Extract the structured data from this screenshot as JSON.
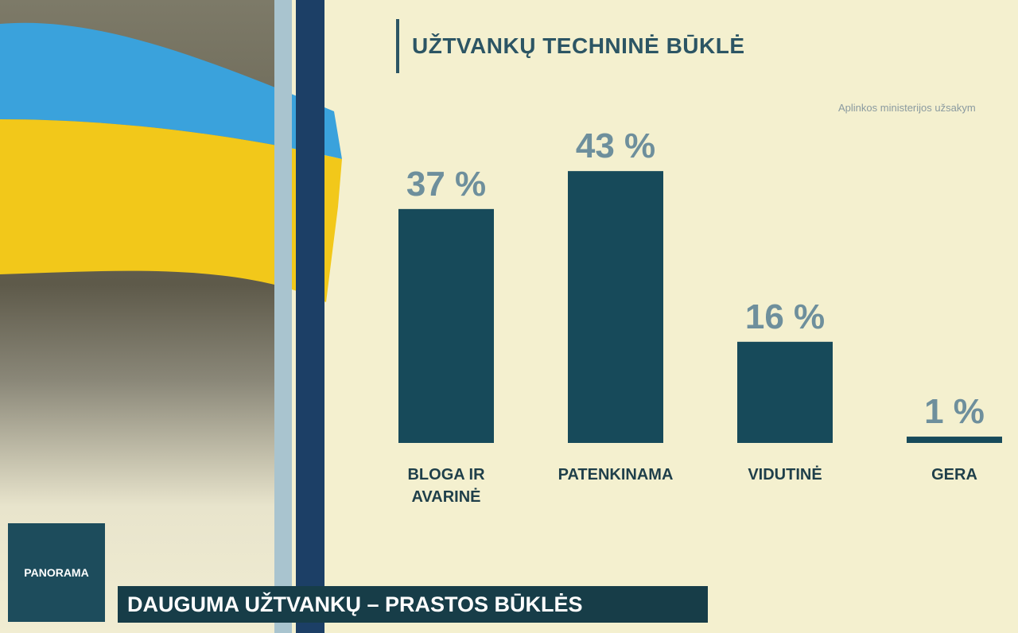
{
  "chart_data": {
    "type": "bar",
    "title": "UŽTVANKŲ TECHNINĖ BŪKLĖ",
    "source": "Aplinkos ministerijos užsakym",
    "categories": [
      "BLOGA IR AVARINĖ",
      "PATENKINAMA",
      "VIDUTINĖ",
      "GERA"
    ],
    "values": [
      37,
      43,
      16,
      1
    ],
    "value_labels": [
      "37 %",
      "43 %",
      "16 %",
      "1 %"
    ],
    "color": "#174a5a"
  },
  "broadcast": {
    "logo": "PANORAMA",
    "headline": "DAUGUMA UŽTVANKŲ – PRASTOS BŪKLĖS"
  }
}
